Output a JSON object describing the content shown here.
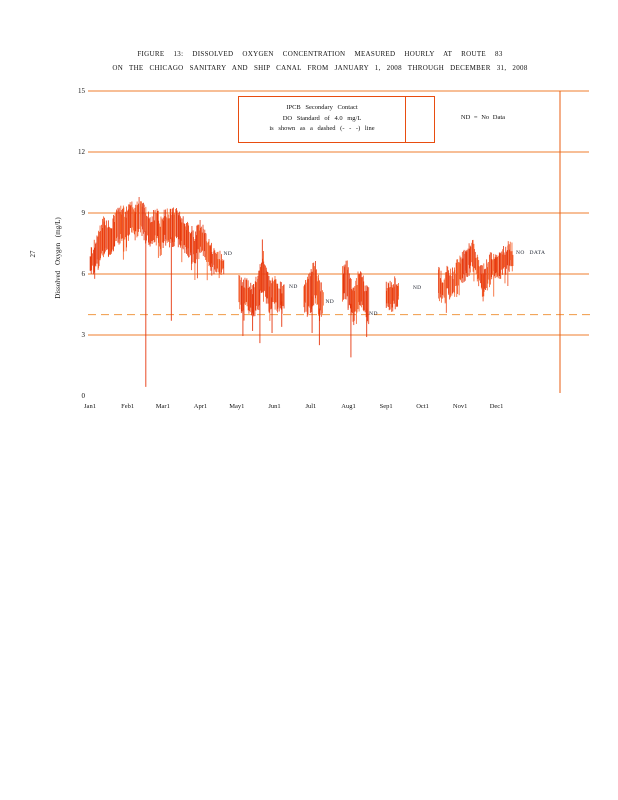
{
  "page": {
    "number": "27"
  },
  "title": {
    "line1": "FIGURE 13: DISSOLVED OXYGEN CONCENTRATION MEASURED HOURLY AT ROUTE 83",
    "line2": "ON THE CHICAGO SANITARY AND SHIP CANAL FROM JANUARY 1, 2008 THROUGH DECEMBER 31, 2008"
  },
  "legend": {
    "box_lines": [
      "IPCB Secondary Contact",
      "DO Standard of 4.0 mg/L",
      "is shown as a dashed (- - -) line"
    ],
    "nd_note": "ND = No Data"
  },
  "colors": {
    "grid": "#ef7e2e",
    "dashed_standard": "#f09a45",
    "frame": "#e95d12",
    "legend_border": "#e84d10",
    "data_palette": [
      "#e2320c",
      "#ee4413",
      "#f55c22",
      "#e83a0e"
    ],
    "spike": "#e6360d",
    "text": "#111111",
    "nd_text": "#1f2430"
  },
  "chart_data": {
    "type": "line",
    "title": "Dissolved oxygen concentration measured hourly at Route 83, Chicago Sanitary and Ship Canal, Jan 1 2008 - Dec 31 2008",
    "ylabel": "Dissolved Oxygen (mg/L)",
    "xlabel": "",
    "ylim": [
      0,
      15
    ],
    "y_ticks": [
      0,
      3,
      6,
      9,
      12,
      15
    ],
    "grid_values": [
      3,
      6,
      9,
      12,
      15
    ],
    "standard_line": {
      "value": 4.0,
      "style": "dashed",
      "label": "IPCB Secondary Contact DO Standard"
    },
    "x_unit": "day of year 2008",
    "x_ticks": [
      {
        "label": "Jan1",
        "day": 0
      },
      {
        "label": "Feb1",
        "day": 31
      },
      {
        "label": "Mar1",
        "day": 60
      },
      {
        "label": "Apr1",
        "day": 91
      },
      {
        "label": "May1",
        "day": 121
      },
      {
        "label": "Jun1",
        "day": 152
      },
      {
        "label": "Jul1",
        "day": 182
      },
      {
        "label": "Aug1",
        "day": 213
      },
      {
        "label": "Sep1",
        "day": 244
      },
      {
        "label": "Oct1",
        "day": 274
      },
      {
        "label": "Nov1",
        "day": 305
      },
      {
        "label": "Dec1",
        "day": 335
      }
    ],
    "envelope_segments": [
      {
        "name": "Jan1-Apr19",
        "points": [
          [
            0,
            6.1,
            6.9
          ],
          [
            4,
            6.3,
            7.6
          ],
          [
            8,
            6.6,
            8.1
          ],
          [
            12,
            7.2,
            8.7
          ],
          [
            16,
            7.0,
            8.2
          ],
          [
            20,
            7.4,
            8.8
          ],
          [
            25,
            7.8,
            9.2
          ],
          [
            30,
            7.6,
            9.0
          ],
          [
            34,
            8.1,
            9.5
          ],
          [
            38,
            7.9,
            9.2
          ],
          [
            42,
            8.2,
            9.7
          ],
          [
            46,
            7.7,
            9.1
          ],
          [
            50,
            7.4,
            8.8
          ],
          [
            55,
            7.7,
            9.0
          ],
          [
            58,
            7.1,
            8.5
          ],
          [
            62,
            7.7,
            9.1
          ],
          [
            67,
            7.4,
            8.9
          ],
          [
            72,
            7.7,
            9.2
          ],
          [
            77,
            7.2,
            8.6
          ],
          [
            82,
            6.9,
            8.3
          ],
          [
            86,
            6.7,
            7.9
          ],
          [
            91,
            7.1,
            8.5
          ],
          [
            95,
            6.8,
            7.9
          ],
          [
            100,
            6.3,
            7.3
          ],
          [
            104,
            6.0,
            6.9
          ],
          [
            110,
            6.2,
            6.8
          ]
        ]
      },
      {
        "name": "May3-Jun8",
        "points": [
          [
            123,
            4.6,
            5.8
          ],
          [
            126,
            4.2,
            5.5
          ],
          [
            130,
            4.4,
            5.6
          ],
          [
            134,
            4.0,
            5.2
          ],
          [
            138,
            4.5,
            6.0
          ],
          [
            141,
            5.0,
            6.6
          ],
          [
            143,
            5.2,
            7.0
          ],
          [
            145,
            4.7,
            6.2
          ],
          [
            148,
            4.3,
            5.6
          ],
          [
            152,
            4.6,
            6.0
          ],
          [
            156,
            4.2,
            5.4
          ],
          [
            160,
            4.3,
            5.2
          ]
        ]
      },
      {
        "name": "Jun25-Jul11",
        "points": [
          [
            176,
            4.4,
            5.6
          ],
          [
            180,
            4.2,
            5.8
          ],
          [
            184,
            4.6,
            6.3
          ],
          [
            186,
            4.9,
            6.5
          ],
          [
            189,
            3.9,
            5.4
          ],
          [
            192,
            4.2,
            5.3
          ]
        ]
      },
      {
        "name": "Jul27-Aug17",
        "points": [
          [
            208,
            4.8,
            6.2
          ],
          [
            211,
            5.1,
            6.6
          ],
          [
            214,
            4.3,
            5.8
          ],
          [
            217,
            3.8,
            5.2
          ],
          [
            220,
            4.2,
            5.7
          ],
          [
            223,
            4.6,
            6.3
          ],
          [
            226,
            4.0,
            5.4
          ],
          [
            230,
            3.8,
            5.0
          ]
        ]
      },
      {
        "name": "Sep1-Sep11",
        "points": [
          [
            244,
            4.4,
            5.4
          ],
          [
            248,
            4.3,
            5.6
          ],
          [
            252,
            4.5,
            5.6
          ],
          [
            255,
            4.7,
            5.6
          ]
        ]
      },
      {
        "name": "Oct14-Dec14",
        "points": [
          [
            287,
            5.0,
            6.1
          ],
          [
            291,
            4.7,
            5.8
          ],
          [
            295,
            5.1,
            6.2
          ],
          [
            299,
            4.9,
            6.0
          ],
          [
            303,
            5.3,
            6.5
          ],
          [
            307,
            5.7,
            7.0
          ],
          [
            311,
            6.1,
            7.3
          ],
          [
            315,
            6.4,
            7.6
          ],
          [
            319,
            5.7,
            6.8
          ],
          [
            323,
            5.1,
            6.2
          ],
          [
            326,
            5.3,
            6.5
          ],
          [
            330,
            5.7,
            6.8
          ],
          [
            334,
            6.1,
            7.1
          ],
          [
            338,
            5.9,
            6.8
          ],
          [
            342,
            6.2,
            7.2
          ],
          [
            346,
            6.4,
            7.4
          ],
          [
            349,
            6.3,
            7.1
          ]
        ]
      }
    ],
    "down_spikes": [
      [
        46,
        0.45
      ],
      [
        67,
        3.7
      ],
      [
        126,
        2.95
      ],
      [
        134,
        3.2
      ],
      [
        140,
        2.6
      ],
      [
        150,
        3.1
      ],
      [
        158,
        3.4
      ],
      [
        183,
        3.1
      ],
      [
        189,
        2.5
      ],
      [
        215,
        1.9
      ],
      [
        228,
        2.9
      ]
    ],
    "up_spikes": [
      [
        142,
        7.7
      ]
    ],
    "annotations": [
      {
        "text": "ND",
        "day": 110,
        "value": 7.0
      },
      {
        "text": "ND",
        "day": 164,
        "value": 5.35
      },
      {
        "text": "ND",
        "day": 194,
        "value": 4.6
      },
      {
        "text": "ND",
        "day": 230,
        "value": 4.05
      },
      {
        "text": "ND",
        "day": 266,
        "value": 5.3
      },
      {
        "text": "NO DATA",
        "day": 351,
        "value": 7.05
      }
    ],
    "legend_position": "top-center-inside",
    "grid": "horizontal-only"
  }
}
